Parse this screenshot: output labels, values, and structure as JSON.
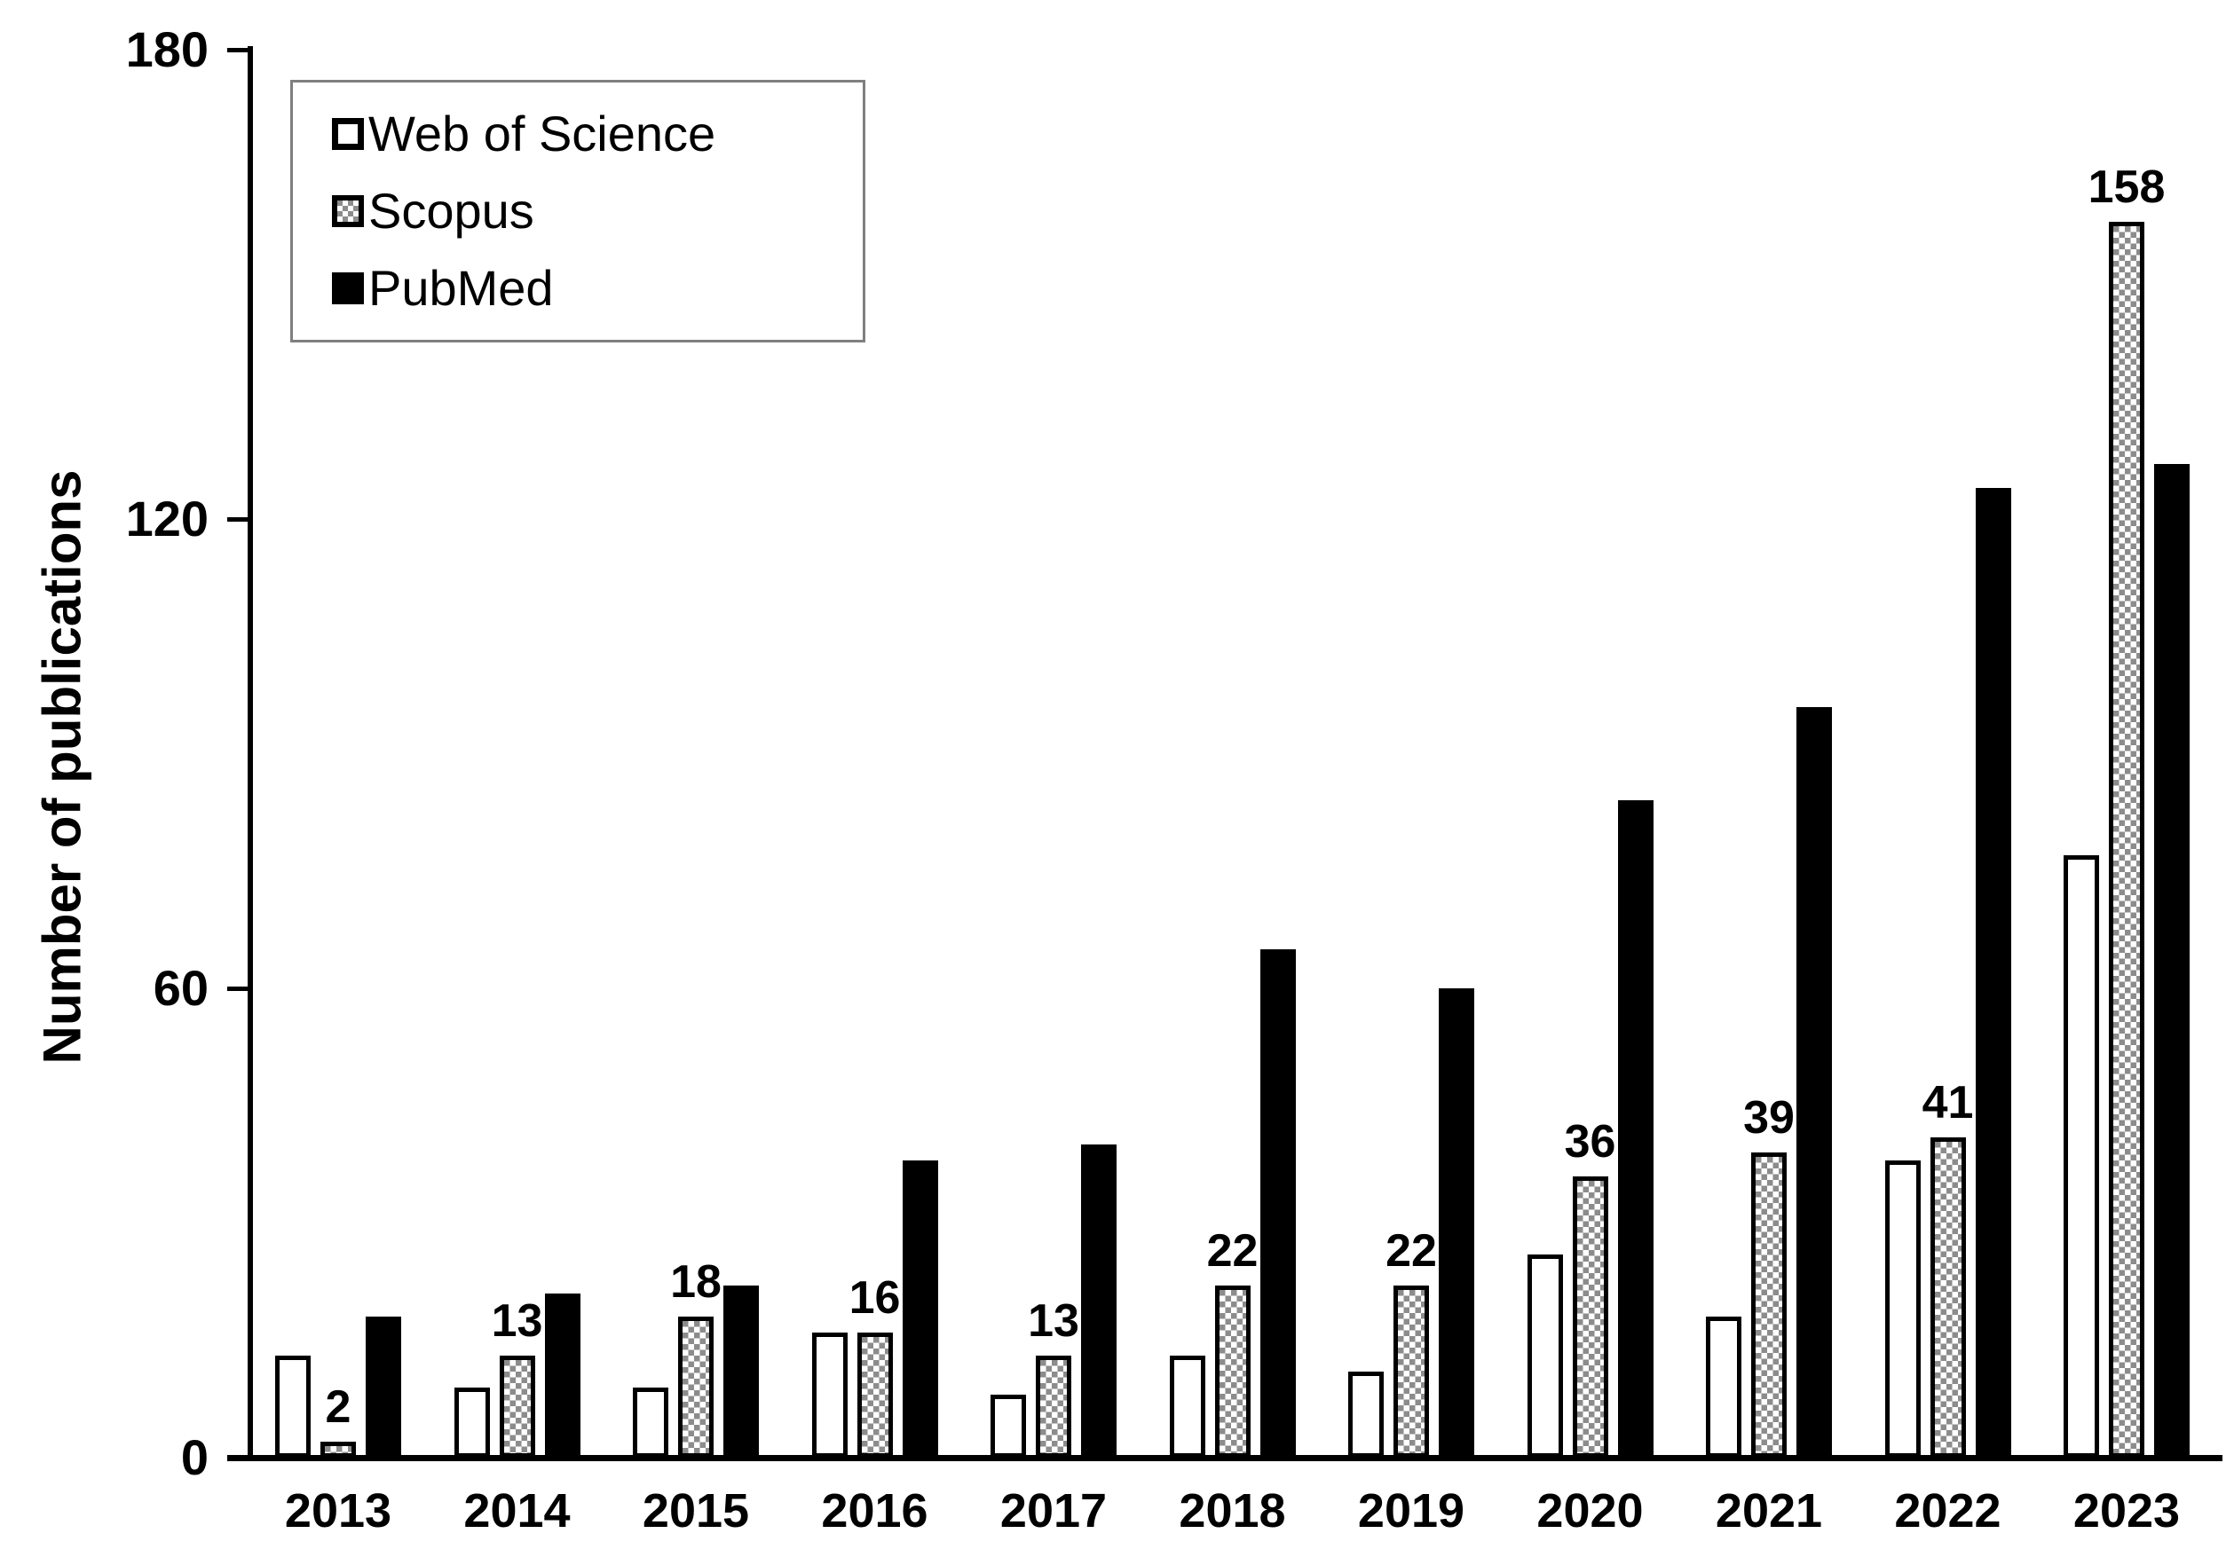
{
  "figure": {
    "background": "#ffffff"
  },
  "legend": {
    "position": "top-left",
    "items": [
      {
        "label": "Web of Science",
        "swatch": "white-square"
      },
      {
        "label": "Scopus",
        "swatch": "checkered-square"
      },
      {
        "label": "PubMed",
        "swatch": "black-square"
      }
    ]
  },
  "chart_data": {
    "type": "bar",
    "ylabel": "Number of publications",
    "xlabel": "",
    "ylim": [
      0,
      180
    ],
    "yticks": [
      "0",
      "60",
      "120",
      "180"
    ],
    "grid": false,
    "legend_position": "top-left",
    "categories": [
      "2013",
      "2014",
      "2015",
      "2016",
      "2017",
      "2018",
      "2019",
      "2020",
      "2021",
      "2022",
      "2023"
    ],
    "series": [
      {
        "name": "Web of Science",
        "style": "white",
        "values": [
          13,
          9,
          9,
          16,
          8,
          13,
          11,
          26,
          18,
          38,
          77
        ],
        "data_labels": false
      },
      {
        "name": "Scopus",
        "style": "checkered",
        "values": [
          2,
          13,
          18,
          16,
          13,
          22,
          22,
          36,
          39,
          41,
          158
        ],
        "data_labels": true,
        "label_texts": [
          "2",
          "13",
          "18",
          "16",
          "13",
          "22",
          "22",
          "36",
          "39",
          "41",
          "158"
        ]
      },
      {
        "name": "PubMed",
        "style": "black",
        "values": [
          18,
          21,
          22,
          38,
          40,
          65,
          60,
          84,
          96,
          124,
          127
        ],
        "data_labels": false
      }
    ],
    "colors": {
      "bar_border": "#000000",
      "checker_gray": "#8c8c8c",
      "axis": "#000000",
      "legend_border": "#7f7f7f",
      "text": "#000000"
    }
  }
}
